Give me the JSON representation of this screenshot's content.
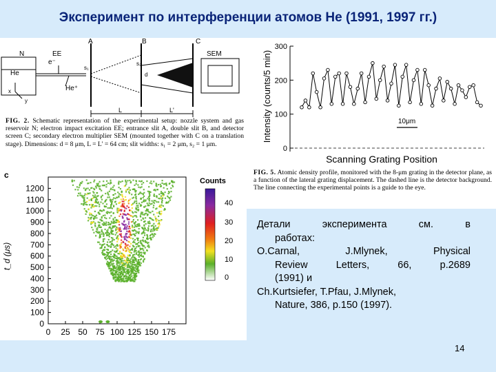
{
  "slide": {
    "title": "Эксперимент по интерференции атомов He (1991, 1997 гг.)",
    "slide_number": "14"
  },
  "setup_figure": {
    "labels": {
      "N": "N",
      "EE": "EE",
      "A": "A",
      "B": "B",
      "C": "C",
      "SEM": "SEM",
      "He": "He",
      "e_minus": "e⁻",
      "He_plus": "He⁺",
      "s1": "s₁",
      "s2": "s₂",
      "d": "d",
      "x": "x",
      "y": "y",
      "L": "L",
      "L_prime": "L'"
    },
    "caption_label": "FIG. 2.",
    "caption": "Schematic representation of the experimental setup: nozzle system and gas reservoir N; electron impact excitation EE; entrance slit A, double slit B, and detector screen C; secondary electron multiplier SEM (mounted together with C on a translation stage). Dimensions: d = 8 μm, L = L' = 64 cm; slit widths: s₁ = 2 μm, s₂ = 1 μm."
  },
  "profile_figure": {
    "ylabel": "Intensity (counts/5 min)",
    "xlabel": "Scanning Grating Position",
    "scale_bar": "10μm",
    "caption_label": "FIG. 5.",
    "caption": "Atomic density profile, monitored with the 8-μm grating in the detector plane, as a function of the lateral grating displacement. The dashed line is the detector background. The line connecting the experimental points is a guide to the eye."
  },
  "tof_figure": {
    "panel_letter": "c",
    "ylabel": "t_d (μs)",
    "colorbar_title": "Counts",
    "colorbar_ticks": [
      "40",
      "30",
      "20",
      "10",
      "0"
    ],
    "colorbar_colors": [
      "#3a1a9a",
      "#8a2aa0",
      "#e02020",
      "#f07a10",
      "#f2e020",
      "#5ab02a",
      "#ffffff"
    ]
  },
  "notes": {
    "line1": "Детали эксперимента см. в",
    "line2": "работах:",
    "line3": "O.Carnal, J.Mlynek, Physical",
    "line4": "Review Letters, 66, p.2689",
    "line5": "(1991) и",
    "line6": "Ch.Kurtsiefer, T.Pfau, J.Mlynek,",
    "line7": "Nature, 386, p.150 (1997)."
  },
  "chart_data": [
    {
      "type": "scatter",
      "xlabel": "Scanning Grating Position",
      "ylabel": "Intensity (counts/5 min)",
      "ylim": [
        0,
        300
      ],
      "yticks": [
        0,
        100,
        200,
        300
      ],
      "x": [
        0,
        1,
        2,
        3,
        4,
        5,
        6,
        7,
        8,
        9,
        10,
        11,
        12,
        13,
        14,
        15,
        16,
        17,
        18,
        19,
        20,
        21,
        22,
        23,
        24,
        25,
        26,
        27,
        28,
        29,
        30,
        31,
        32,
        33,
        34,
        35,
        36,
        37,
        38,
        39,
        40,
        41,
        42,
        43,
        44,
        45,
        46,
        47,
        48
      ],
      "values": [
        120,
        140,
        120,
        220,
        165,
        120,
        205,
        230,
        130,
        210,
        220,
        130,
        220,
        180,
        130,
        175,
        220,
        135,
        210,
        250,
        145,
        200,
        240,
        140,
        190,
        245,
        125,
        210,
        245,
        135,
        200,
        230,
        130,
        230,
        185,
        125,
        175,
        205,
        140,
        195,
        175,
        130,
        185,
        170,
        150,
        180,
        185,
        135,
        125
      ],
      "background": 15
    },
    {
      "type": "heatmap",
      "xlabel": "",
      "ylabel": "t_d (μs)",
      "xlim": [
        0,
        200
      ],
      "ylim": [
        0,
        1300
      ],
      "xticks": [
        0,
        25,
        50,
        75,
        100,
        125,
        150,
        175
      ],
      "yticks": [
        0,
        100,
        200,
        300,
        400,
        500,
        600,
        700,
        800,
        900,
        1000,
        1100,
        1200
      ],
      "colorbar": {
        "title": "Counts",
        "ticks": [
          0,
          10,
          20,
          30,
          40
        ]
      }
    }
  ]
}
